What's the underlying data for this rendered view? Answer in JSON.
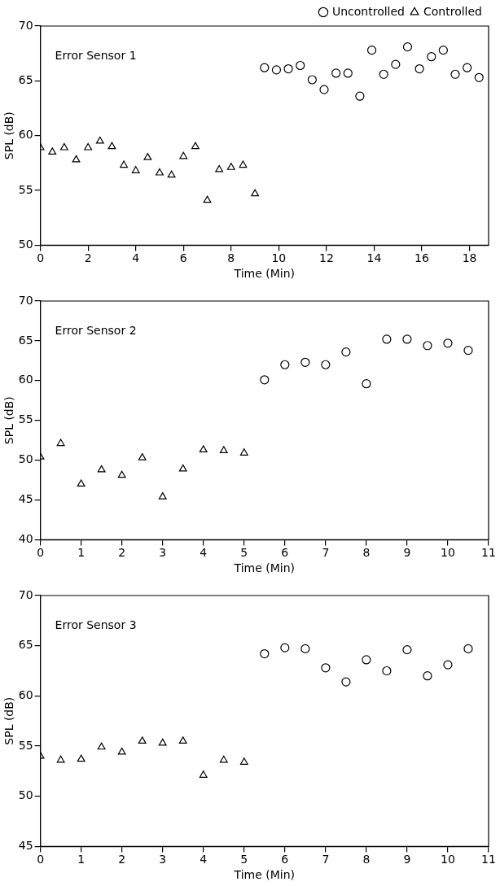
{
  "chart_data": [
    {
      "type": "scatter",
      "annotations": [
        "Error Sensor 1"
      ],
      "xlabel": "Time (Min)",
      "ylabel": "SPL (dB)",
      "xlim": [
        0,
        18.8
      ],
      "xticks": [
        0,
        2,
        4,
        6,
        8,
        10,
        12,
        14,
        16,
        18
      ],
      "ylim": [
        50,
        70
      ],
      "yticks": [
        50,
        55,
        60,
        65,
        70
      ],
      "grid": false,
      "legend": "top right",
      "series": [
        {
          "name": "Uncontrolled",
          "color": "#000000",
          "marker": "circle",
          "x": [
            9.4,
            9.9,
            10.4,
            10.9,
            11.4,
            11.9,
            12.4,
            12.9,
            13.4,
            13.9,
            14.4,
            14.9,
            15.4,
            15.9,
            16.4,
            16.9,
            17.4,
            17.9,
            18.4
          ],
          "values": [
            66.2,
            66.0,
            66.1,
            66.4,
            65.1,
            64.2,
            65.7,
            65.7,
            63.6,
            67.8,
            65.6,
            66.5,
            68.1,
            66.1,
            67.2,
            67.8,
            65.6,
            66.2,
            65.3
          ]
        },
        {
          "name": "Controlled",
          "color": "#000000",
          "marker": "triangle",
          "x": [
            0,
            0.5,
            1,
            1.5,
            2,
            2.5,
            3,
            3.5,
            4,
            4.5,
            5,
            5.5,
            6,
            6.5,
            7,
            7.5,
            8,
            8.5,
            9
          ],
          "values": [
            58.9,
            58.5,
            58.9,
            57.8,
            58.9,
            59.5,
            59.0,
            57.3,
            56.8,
            58.0,
            56.6,
            56.4,
            58.1,
            59.0,
            54.1,
            56.9,
            57.1,
            57.3,
            54.7
          ]
        }
      ]
    },
    {
      "type": "scatter",
      "annotations": [
        "Error Sensor 2"
      ],
      "xlabel": "Time (Min)",
      "ylabel": "SPL (dB)",
      "xlim": [
        0,
        11
      ],
      "xticks": [
        0,
        1,
        2,
        3,
        4,
        5,
        6,
        7,
        8,
        9,
        10,
        11
      ],
      "ylim": [
        40,
        70
      ],
      "yticks": [
        40,
        45,
        50,
        55,
        60,
        65,
        70
      ],
      "grid": false,
      "series": [
        {
          "color": "#000000",
          "marker": "triangle",
          "x": [
            0,
            0.5,
            1,
            1.5,
            2,
            2.5,
            3,
            3.5,
            4,
            4.5,
            5
          ],
          "values": [
            50.4,
            52.1,
            47.0,
            48.8,
            48.1,
            50.3,
            45.4,
            48.9,
            51.3,
            51.2,
            50.9
          ]
        },
        {
          "color": "#000000",
          "marker": "circle",
          "x": [
            5.5,
            6,
            6.5,
            7,
            7.5,
            8,
            8.5,
            9,
            9.5,
            10,
            10.5
          ],
          "values": [
            60.1,
            62.0,
            62.3,
            62.0,
            63.6,
            59.6,
            65.2,
            65.2,
            64.4,
            64.7,
            63.8
          ]
        }
      ]
    },
    {
      "type": "scatter",
      "annotations": [
        "Error Sensor 3"
      ],
      "xlabel": "Time (Min)",
      "ylabel": "SPL (dB)",
      "xlim": [
        0,
        11
      ],
      "xticks": [
        0,
        1,
        2,
        3,
        4,
        5,
        6,
        7,
        8,
        9,
        10,
        11
      ],
      "ylim": [
        45,
        70
      ],
      "yticks": [
        45,
        50,
        55,
        60,
        65,
        70
      ],
      "grid": false,
      "series": [
        {
          "color": "#000000",
          "marker": "triangle",
          "x": [
            0,
            0.5,
            1,
            1.5,
            2,
            2.5,
            3,
            3.5,
            4,
            4.5,
            5
          ],
          "values": [
            54.0,
            53.6,
            53.7,
            54.9,
            54.4,
            55.5,
            55.3,
            55.5,
            52.1,
            53.6,
            53.4
          ]
        },
        {
          "color": "#000000",
          "marker": "circle",
          "x": [
            5.5,
            6,
            6.5,
            7,
            7.5,
            8,
            8.5,
            9,
            9.5,
            10,
            10.5
          ],
          "values": [
            64.2,
            64.8,
            64.7,
            62.8,
            61.4,
            63.6,
            62.5,
            64.6,
            62.0,
            63.1,
            64.7
          ]
        }
      ]
    }
  ]
}
